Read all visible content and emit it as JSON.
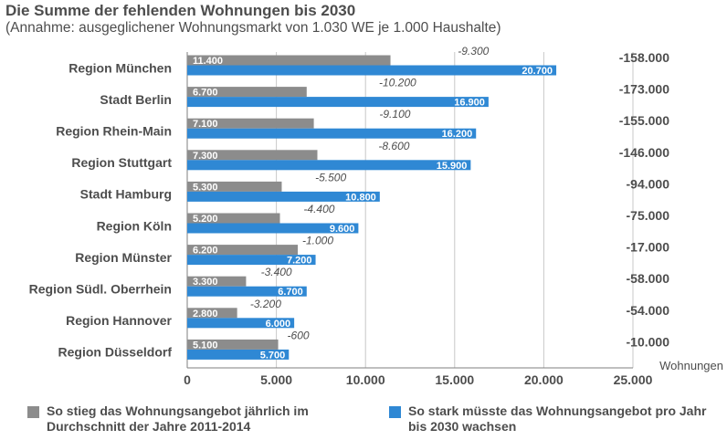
{
  "chart_data": {
    "type": "bar",
    "orientation": "horizontal",
    "title": "Die Summe der fehlenden Wohnungen bis 2030",
    "subtitle": "(Annahme: ausgeglichener Wohnungsmarkt von 1.030 WE je 1.000 Haushalte)",
    "xlabel": "Wohnungen",
    "xlim": [
      0,
      25000
    ],
    "x_ticks": [
      "0",
      "5.000",
      "10.000",
      "15.000",
      "20.000",
      "25.000"
    ],
    "grid": true,
    "legend_position": "bottom",
    "categories": [
      "Region München",
      "Stadt Berlin",
      "Region Rhein-Main",
      "Region Stuttgart",
      "Stadt Hamburg",
      "Region Köln",
      "Region Münster",
      "Region Südl. Oberrhein",
      "Region Hannover",
      "Region Düsseldorf"
    ],
    "series": [
      {
        "name": "So stieg das Wohnungsangebot jährlich im Durchschnitt der Jahre 2011-2014",
        "color": "#8c8c8c",
        "values": [
          11400,
          6700,
          7100,
          7300,
          5300,
          5200,
          6200,
          3300,
          2800,
          5100
        ],
        "labels": [
          "11.400",
          "6.700",
          "7.100",
          "7.300",
          "5.300",
          "5.200",
          "6.200",
          "3.300",
          "2.800",
          "5.100"
        ]
      },
      {
        "name": "So stark müsste das Wohnungsangebot pro Jahr bis 2030 wachsen",
        "color": "#2f88d4",
        "values": [
          20700,
          16900,
          16200,
          15900,
          10800,
          9600,
          7200,
          6700,
          6000,
          5700
        ],
        "labels": [
          "20.700",
          "16.900",
          "16.200",
          "15.900",
          "10.800",
          "9.600",
          "7.200",
          "6.700",
          "6.000",
          "5.700"
        ]
      }
    ],
    "annual_gap": [
      "-9.300",
      "-10.200",
      "-9.100",
      "-8.600",
      "-5.500",
      "-4.400",
      "-1.000",
      "-3.400",
      "-3.200",
      "-600"
    ],
    "total_missing": [
      "-158.000",
      "-173.000",
      "-155.000",
      "-146.000",
      "-94.000",
      "-75.000",
      "-17.000",
      "-58.000",
      "-54.000",
      "-10.000"
    ]
  }
}
